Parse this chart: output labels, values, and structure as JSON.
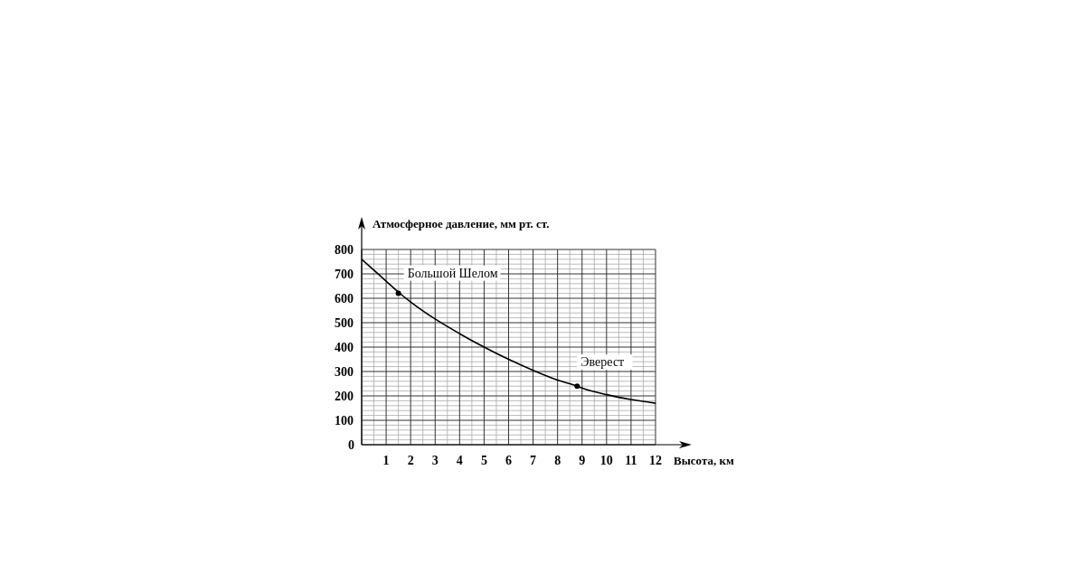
{
  "chart_data": {
    "type": "line",
    "ylabel": "Атмосферное давление, мм  рт. ст.",
    "xlabel": "Высота, км",
    "series": [
      {
        "color": "#000000",
        "x": [
          0,
          0.5,
          1,
          1.5,
          2,
          3,
          4,
          5,
          6,
          7,
          8,
          8.8,
          9,
          10,
          11,
          12
        ],
        "values": [
          760,
          715,
          670,
          625,
          585,
          515,
          455,
          400,
          350,
          305,
          265,
          240,
          232,
          205,
          185,
          170
        ]
      },
      {
        "type": "scatter",
        "marker": "circle",
        "color": "#000000",
        "x": [
          1.5,
          8.8
        ],
        "values": [
          620,
          240
        ]
      }
    ],
    "annotations": [
      {
        "text": "Большой Шелом",
        "x": 1.5,
        "y": 620
      },
      {
        "text": "Эверест",
        "x": 8.8,
        "y": 240
      }
    ],
    "xlim": [
      0,
      12
    ],
    "xticks": [
      {
        "value": 0,
        "label": null
      },
      1,
      2,
      3,
      4,
      5,
      6,
      7,
      8,
      9,
      10,
      11,
      12
    ],
    "ylim": [
      0,
      800
    ],
    "yticks": [
      0,
      100,
      200,
      300,
      400,
      500,
      600,
      700,
      800
    ],
    "grid": true
  }
}
